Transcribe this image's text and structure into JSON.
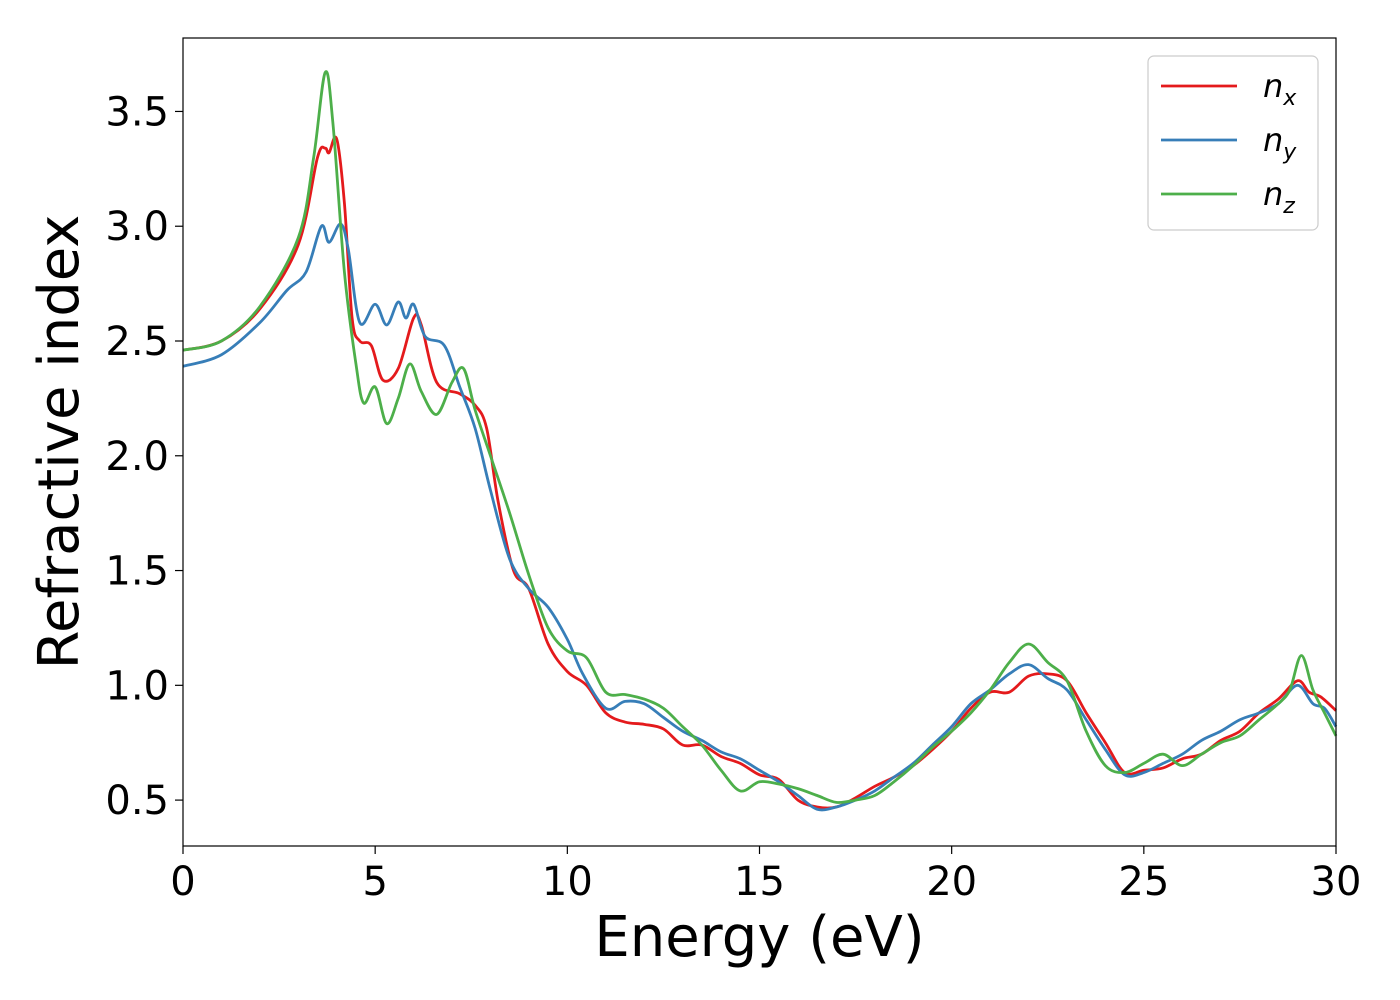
{
  "chart_data": {
    "type": "line",
    "xlabel": "Energy (eV)",
    "ylabel": "Refractive index",
    "xlim": [
      0,
      30
    ],
    "ylim": [
      0.3,
      3.82
    ],
    "xticks": [
      0,
      5,
      10,
      15,
      20,
      25,
      30
    ],
    "xtick_labels": [
      "0",
      "5",
      "10",
      "15",
      "20",
      "25",
      "30"
    ],
    "yticks": [
      0.5,
      1.0,
      1.5,
      2.0,
      2.5,
      3.0,
      3.5
    ],
    "ytick_labels": [
      "0.5",
      "1.0",
      "1.5",
      "2.0",
      "2.5",
      "3.0",
      "3.5"
    ],
    "grid": false,
    "legend_position": "top-right",
    "series": [
      {
        "name": "n_x",
        "label_base": "n",
        "label_sub": "x",
        "color": "#e41a1c",
        "points": [
          [
            0,
            2.46
          ],
          [
            1,
            2.5
          ],
          [
            2,
            2.64
          ],
          [
            3,
            2.92
          ],
          [
            3.5,
            3.3
          ],
          [
            3.7,
            3.34
          ],
          [
            3.8,
            3.32
          ],
          [
            4.0,
            3.38
          ],
          [
            4.2,
            3.1
          ],
          [
            4.4,
            2.6
          ],
          [
            4.6,
            2.5
          ],
          [
            4.9,
            2.48
          ],
          [
            5.2,
            2.33
          ],
          [
            5.6,
            2.38
          ],
          [
            6.0,
            2.6
          ],
          [
            6.2,
            2.57
          ],
          [
            6.6,
            2.32
          ],
          [
            7.2,
            2.27
          ],
          [
            7.6,
            2.22
          ],
          [
            7.9,
            2.12
          ],
          [
            8.2,
            1.8
          ],
          [
            8.6,
            1.5
          ],
          [
            9.0,
            1.42
          ],
          [
            9.5,
            1.18
          ],
          [
            10,
            1.06
          ],
          [
            10.5,
            1.0
          ],
          [
            11,
            0.88
          ],
          [
            11.5,
            0.84
          ],
          [
            12,
            0.83
          ],
          [
            12.5,
            0.81
          ],
          [
            13,
            0.74
          ],
          [
            13.5,
            0.74
          ],
          [
            14,
            0.69
          ],
          [
            14.5,
            0.66
          ],
          [
            15,
            0.61
          ],
          [
            15.5,
            0.59
          ],
          [
            16,
            0.5
          ],
          [
            16.5,
            0.47
          ],
          [
            17,
            0.47
          ],
          [
            17.5,
            0.51
          ],
          [
            18,
            0.56
          ],
          [
            18.5,
            0.6
          ],
          [
            19,
            0.65
          ],
          [
            19.5,
            0.72
          ],
          [
            20,
            0.8
          ],
          [
            20.5,
            0.9
          ],
          [
            21,
            0.97
          ],
          [
            21.5,
            0.97
          ],
          [
            22,
            1.04
          ],
          [
            22.5,
            1.05
          ],
          [
            23,
            1.02
          ],
          [
            23.5,
            0.88
          ],
          [
            24,
            0.75
          ],
          [
            24.5,
            0.62
          ],
          [
            25,
            0.63
          ],
          [
            25.5,
            0.64
          ],
          [
            26,
            0.68
          ],
          [
            26.5,
            0.7
          ],
          [
            27,
            0.76
          ],
          [
            27.5,
            0.8
          ],
          [
            28,
            0.88
          ],
          [
            28.5,
            0.94
          ],
          [
            29,
            1.02
          ],
          [
            29.3,
            0.97
          ],
          [
            29.6,
            0.95
          ],
          [
            30,
            0.89
          ]
        ]
      },
      {
        "name": "n_y",
        "label_base": "n",
        "label_sub": "y",
        "color": "#377eb8",
        "points": [
          [
            0,
            2.39
          ],
          [
            1,
            2.44
          ],
          [
            2,
            2.58
          ],
          [
            2.7,
            2.72
          ],
          [
            3.2,
            2.8
          ],
          [
            3.6,
            3.0
          ],
          [
            3.8,
            2.93
          ],
          [
            4.1,
            3.01
          ],
          [
            4.3,
            2.9
          ],
          [
            4.6,
            2.58
          ],
          [
            5.0,
            2.66
          ],
          [
            5.3,
            2.57
          ],
          [
            5.6,
            2.67
          ],
          [
            5.8,
            2.6
          ],
          [
            6.0,
            2.66
          ],
          [
            6.3,
            2.52
          ],
          [
            6.8,
            2.48
          ],
          [
            7.2,
            2.3
          ],
          [
            7.6,
            2.12
          ],
          [
            8.0,
            1.85
          ],
          [
            8.5,
            1.55
          ],
          [
            9.0,
            1.42
          ],
          [
            9.5,
            1.34
          ],
          [
            10,
            1.2
          ],
          [
            10.4,
            1.05
          ],
          [
            11,
            0.9
          ],
          [
            11.5,
            0.93
          ],
          [
            12,
            0.92
          ],
          [
            12.5,
            0.86
          ],
          [
            13,
            0.8
          ],
          [
            13.5,
            0.76
          ],
          [
            14,
            0.71
          ],
          [
            14.5,
            0.68
          ],
          [
            15,
            0.63
          ],
          [
            15.5,
            0.58
          ],
          [
            16,
            0.52
          ],
          [
            16.5,
            0.46
          ],
          [
            17,
            0.47
          ],
          [
            17.5,
            0.5
          ],
          [
            18,
            0.54
          ],
          [
            18.5,
            0.6
          ],
          [
            19,
            0.66
          ],
          [
            19.5,
            0.74
          ],
          [
            20,
            0.82
          ],
          [
            20.5,
            0.92
          ],
          [
            21,
            0.98
          ],
          [
            21.5,
            1.05
          ],
          [
            22,
            1.09
          ],
          [
            22.5,
            1.03
          ],
          [
            23,
            0.98
          ],
          [
            23.5,
            0.85
          ],
          [
            24,
            0.72
          ],
          [
            24.5,
            0.61
          ],
          [
            25,
            0.62
          ],
          [
            25.5,
            0.66
          ],
          [
            26,
            0.7
          ],
          [
            26.5,
            0.76
          ],
          [
            27,
            0.8
          ],
          [
            27.5,
            0.85
          ],
          [
            28,
            0.88
          ],
          [
            28.5,
            0.92
          ],
          [
            29,
            1.0
          ],
          [
            29.4,
            0.92
          ],
          [
            29.7,
            0.9
          ],
          [
            30,
            0.82
          ]
        ]
      },
      {
        "name": "n_z",
        "label_base": "n",
        "label_sub": "z",
        "color": "#4daf4a",
        "points": [
          [
            0,
            2.46
          ],
          [
            1,
            2.5
          ],
          [
            2,
            2.65
          ],
          [
            3,
            2.95
          ],
          [
            3.4,
            3.3
          ],
          [
            3.7,
            3.67
          ],
          [
            3.9,
            3.45
          ],
          [
            4.2,
            2.8
          ],
          [
            4.5,
            2.4
          ],
          [
            4.7,
            2.23
          ],
          [
            5.0,
            2.3
          ],
          [
            5.3,
            2.14
          ],
          [
            5.6,
            2.25
          ],
          [
            5.9,
            2.4
          ],
          [
            6.2,
            2.28
          ],
          [
            6.6,
            2.18
          ],
          [
            7.0,
            2.32
          ],
          [
            7.3,
            2.38
          ],
          [
            7.6,
            2.2
          ],
          [
            8.0,
            2.0
          ],
          [
            8.5,
            1.75
          ],
          [
            9.0,
            1.48
          ],
          [
            9.5,
            1.25
          ],
          [
            10,
            1.15
          ],
          [
            10.5,
            1.12
          ],
          [
            11,
            0.97
          ],
          [
            11.5,
            0.96
          ],
          [
            12,
            0.94
          ],
          [
            12.5,
            0.9
          ],
          [
            13,
            0.82
          ],
          [
            13.5,
            0.74
          ],
          [
            14,
            0.63
          ],
          [
            14.5,
            0.54
          ],
          [
            15,
            0.58
          ],
          [
            15.5,
            0.57
          ],
          [
            16,
            0.55
          ],
          [
            16.5,
            0.52
          ],
          [
            17,
            0.49
          ],
          [
            17.5,
            0.5
          ],
          [
            18,
            0.52
          ],
          [
            18.5,
            0.58
          ],
          [
            19,
            0.65
          ],
          [
            19.5,
            0.73
          ],
          [
            20,
            0.8
          ],
          [
            20.5,
            0.88
          ],
          [
            21,
            0.98
          ],
          [
            21.5,
            1.1
          ],
          [
            22,
            1.18
          ],
          [
            22.5,
            1.1
          ],
          [
            23,
            1.02
          ],
          [
            23.5,
            0.8
          ],
          [
            24,
            0.65
          ],
          [
            24.5,
            0.62
          ],
          [
            25,
            0.66
          ],
          [
            25.5,
            0.7
          ],
          [
            26,
            0.65
          ],
          [
            26.5,
            0.7
          ],
          [
            27,
            0.75
          ],
          [
            27.5,
            0.78
          ],
          [
            28,
            0.85
          ],
          [
            28.5,
            0.92
          ],
          [
            28.8,
            0.98
          ],
          [
            29.1,
            1.13
          ],
          [
            29.4,
            0.98
          ],
          [
            29.7,
            0.88
          ],
          [
            30,
            0.78
          ]
        ]
      }
    ]
  }
}
